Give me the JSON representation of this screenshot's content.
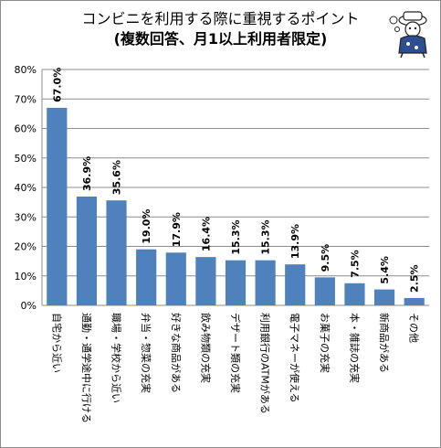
{
  "chart_data": {
    "type": "bar",
    "title": "コンビニを利用する際に重視するポイント",
    "subtitle": "(複数回答、月1以上利用者限定)",
    "categories": [
      "自宅から近い",
      "通勤・通学途中に行ける",
      "職場・学校から近い",
      "弁当・惣菜の充実",
      "好きな商品がある",
      "飲み物類の充実",
      "デザート類の充実",
      "利用銀行のATMがある",
      "電子マネーが使える",
      "お菓子の充実",
      "本・雑誌の充実",
      "新商品がある",
      "その他"
    ],
    "values": [
      67.0,
      36.9,
      35.6,
      19.0,
      17.9,
      16.4,
      15.3,
      15.3,
      13.9,
      9.5,
      7.5,
      5.4,
      2.5
    ],
    "data_labels": [
      "67.0%",
      "36.9%",
      "35.6%",
      "19.0%",
      "17.9%",
      "16.4%",
      "15.3%",
      "15.3%",
      "13.9%",
      "9.5%",
      "7.5%",
      "5.4%",
      "2.5%"
    ],
    "ylim": [
      0,
      80
    ],
    "y_ticks": [
      0,
      10,
      20,
      30,
      40,
      50,
      60,
      70,
      80
    ],
    "y_tick_labels": [
      "0%",
      "10%",
      "20%",
      "30%",
      "40%",
      "50%",
      "60%",
      "70%",
      "80%"
    ],
    "xlabel": "",
    "ylabel": "",
    "grid": true,
    "legend": "none",
    "colors": {
      "bar": "#4f81bd",
      "grid": "#8c8c8c",
      "axis": "#8c8c8c"
    }
  },
  "mascot_icon": "mascot-illustration"
}
